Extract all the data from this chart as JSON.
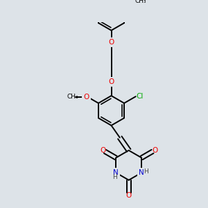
{
  "bg_color": "#dde3e8",
  "bond_color": "#000000",
  "bond_width": 1.4,
  "figsize": [
    3.0,
    3.0
  ],
  "dpi": 100,
  "atom_colors": {
    "O": "#ee0000",
    "N": "#0000cc",
    "Cl": "#00aa00",
    "C": "#000000",
    "H": "#444444"
  },
  "font_size": 7.5,
  "fs_small": 6.5
}
